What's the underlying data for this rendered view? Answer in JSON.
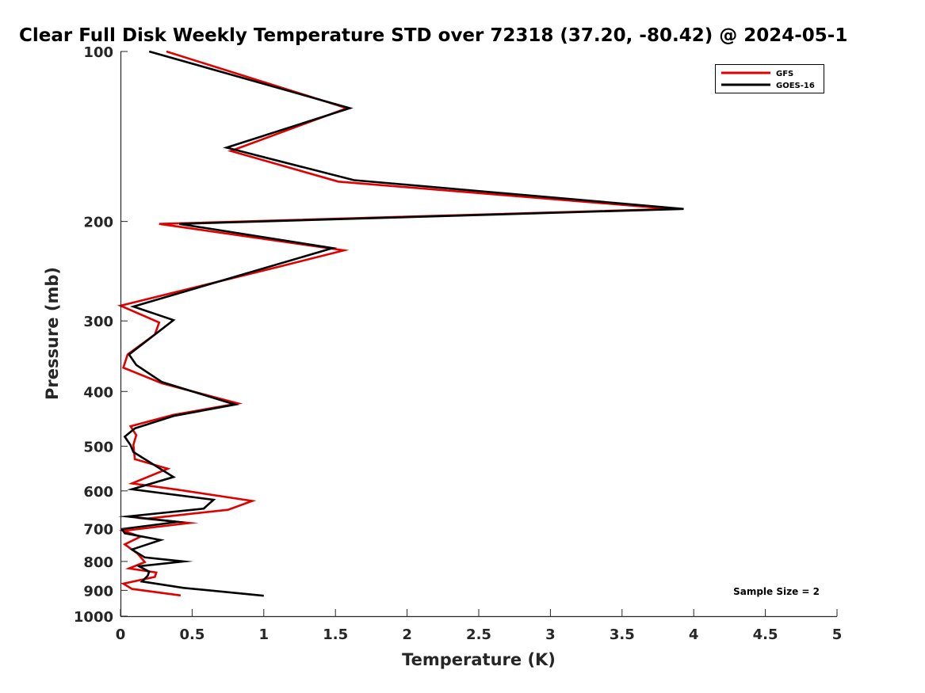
{
  "chart_data": {
    "type": "line",
    "title": "Clear Full Disk Weekly Temperature STD over 72318 (37.20, -80.42) @ 2024-05-1",
    "xlabel": "Temperature (K)",
    "ylabel": "Pressure (mb)",
    "xlim": [
      0,
      5
    ],
    "ylim": [
      100,
      1000
    ],
    "yscale": "log",
    "yreversed": true,
    "xticks": [
      0,
      0.5,
      1,
      1.5,
      2,
      2.5,
      3,
      3.5,
      4,
      4.5,
      5
    ],
    "xtick_labels": [
      "0",
      "0.5",
      "1",
      "1.5",
      "2",
      "2.5",
      "3",
      "3.5",
      "4",
      "4.5",
      "5"
    ],
    "yticks": [
      100,
      200,
      300,
      400,
      500,
      600,
      700,
      800,
      900,
      1000
    ],
    "ytick_labels": [
      "100",
      "200",
      "300",
      "400",
      "500",
      "600",
      "700",
      "800",
      "900",
      "1000"
    ],
    "grid": false,
    "legend_position": "top-right",
    "annotation": "Sample Size = 2",
    "series": [
      {
        "name": "GFS",
        "color": "#e00000",
        "x": [
          0.32,
          1.58,
          0.77,
          1.52,
          3.85,
          0.27,
          1.56,
          1.12,
          0.0,
          0.27,
          0.24,
          0.05,
          0.02,
          0.29,
          0.82,
          0.37,
          0.07,
          0.11,
          0.09,
          0.1,
          0.33,
          0.08,
          0.38,
          0.92,
          0.75,
          0.18,
          0.48,
          0.02,
          0.14,
          0.03,
          0.12,
          0.17,
          0.06,
          0.25,
          0.24,
          0.02,
          0.08,
          0.42
        ],
        "y": [
          100,
          126,
          150,
          170,
          190,
          202,
          225,
          240,
          282,
          302,
          317,
          344,
          363,
          387,
          420,
          440,
          461,
          478,
          497,
          527,
          548,
          582,
          596,
          625,
          648,
          672,
          684,
          706,
          723,
          746,
          775,
          802,
          823,
          837,
          852,
          876,
          895,
          919
        ]
      },
      {
        "name": "GOES-16",
        "color": "#000000",
        "x": [
          0.2,
          1.6,
          0.74,
          1.63,
          3.93,
          0.41,
          1.48,
          1.05,
          0.09,
          0.37,
          0.06,
          0.11,
          0.29,
          0.8,
          0.37,
          0.1,
          0.03,
          0.07,
          0.09,
          0.37,
          0.08,
          0.65,
          0.58,
          0.05,
          0.4,
          0.01,
          0.03,
          0.28,
          0.08,
          0.17,
          0.44,
          0.13,
          0.2,
          0.19,
          0.15,
          0.44,
          1.0
        ],
        "y": [
          100,
          126,
          148,
          169,
          190,
          202,
          223,
          240,
          283,
          299,
          344,
          359,
          385,
          422,
          442,
          465,
          481,
          498,
          512,
          567,
          596,
          622,
          645,
          666,
          681,
          701,
          713,
          733,
          762,
          787,
          800,
          816,
          834,
          848,
          868,
          891,
          920
        ]
      }
    ]
  }
}
